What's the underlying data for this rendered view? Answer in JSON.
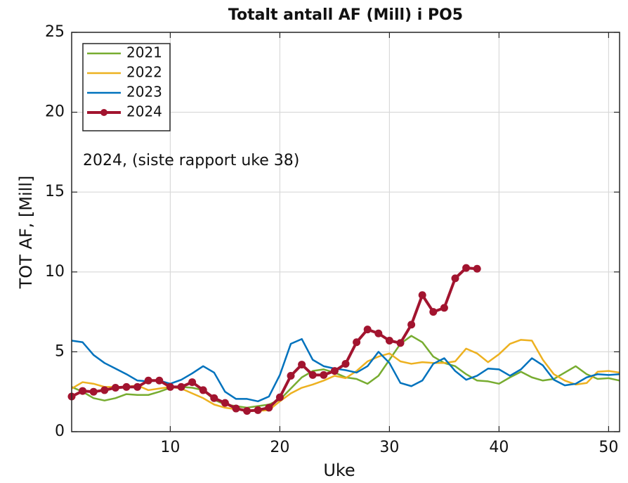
{
  "chart_data": {
    "type": "line",
    "title": "Totalt antall AF (Mill) i PO5",
    "xlabel": "Uke",
    "ylabel": "TOT AF, [Mill]",
    "annotation": "2024, (siste rapport uke 38)",
    "x": [
      1,
      2,
      3,
      4,
      5,
      6,
      7,
      8,
      9,
      10,
      11,
      12,
      13,
      14,
      15,
      16,
      17,
      18,
      19,
      20,
      21,
      22,
      23,
      24,
      25,
      26,
      27,
      28,
      29,
      30,
      31,
      32,
      33,
      34,
      35,
      36,
      37,
      38,
      39,
      40,
      41,
      42,
      43,
      44,
      45,
      46,
      47,
      48,
      49,
      50,
      51
    ],
    "series": [
      {
        "name": "2021",
        "color": "#77ac30",
        "marker": false,
        "values": [
          2.8,
          2.5,
          2.1,
          1.95,
          2.1,
          2.35,
          2.3,
          2.3,
          2.5,
          2.75,
          2.8,
          2.75,
          2.6,
          2.0,
          1.7,
          1.6,
          1.5,
          1.6,
          1.7,
          2.0,
          2.7,
          3.4,
          3.8,
          3.9,
          3.7,
          3.4,
          3.3,
          3.0,
          3.5,
          4.5,
          5.5,
          6.0,
          5.6,
          4.7,
          4.3,
          4.1,
          3.6,
          3.2,
          3.15,
          3.0,
          3.4,
          3.75,
          3.4,
          3.2,
          3.3,
          3.7,
          4.1,
          3.6,
          3.3,
          3.35,
          3.2
        ]
      },
      {
        "name": "2022",
        "color": "#edb120",
        "marker": false,
        "values": [
          2.7,
          3.1,
          3.0,
          2.8,
          2.8,
          2.8,
          2.9,
          2.6,
          2.7,
          2.8,
          2.7,
          2.4,
          2.1,
          1.7,
          1.5,
          1.4,
          1.3,
          1.3,
          1.35,
          1.9,
          2.4,
          2.75,
          2.95,
          3.2,
          3.5,
          3.35,
          3.8,
          4.4,
          4.7,
          4.9,
          4.4,
          4.25,
          4.35,
          4.3,
          4.3,
          4.4,
          5.2,
          4.9,
          4.35,
          4.85,
          5.5,
          5.75,
          5.7,
          4.5,
          3.6,
          3.2,
          2.95,
          3.05,
          3.75,
          3.8,
          3.7
        ]
      },
      {
        "name": "2023",
        "color": "#0072bd",
        "marker": false,
        "values": [
          5.7,
          5.6,
          4.8,
          4.3,
          3.95,
          3.6,
          3.2,
          3.15,
          3.2,
          3.0,
          3.25,
          3.65,
          4.1,
          3.7,
          2.5,
          2.05,
          2.05,
          1.9,
          2.2,
          3.55,
          5.5,
          5.8,
          4.5,
          4.1,
          3.95,
          3.85,
          3.7,
          4.1,
          5.0,
          4.3,
          3.05,
          2.85,
          3.2,
          4.25,
          4.6,
          3.8,
          3.25,
          3.5,
          3.95,
          3.9,
          3.5,
          3.9,
          4.6,
          4.15,
          3.25,
          2.9,
          3.0,
          3.4,
          3.6,
          3.55,
          3.6
        ]
      },
      {
        "name": "2024",
        "color": "#a2142f",
        "marker": true,
        "values": [
          2.2,
          2.55,
          2.5,
          2.6,
          2.75,
          2.8,
          2.8,
          3.2,
          3.2,
          2.8,
          2.8,
          3.1,
          2.6,
          2.1,
          1.8,
          1.45,
          1.3,
          1.35,
          1.5,
          2.15,
          3.5,
          4.2,
          3.55,
          3.55,
          3.8,
          4.25,
          5.6,
          6.4,
          6.15,
          5.7,
          5.55,
          6.7,
          8.55,
          7.5,
          7.75,
          9.6,
          10.25,
          10.2,
          null,
          null,
          null,
          null,
          null,
          null,
          null,
          null,
          null,
          null,
          null,
          null,
          null
        ]
      }
    ],
    "xlim": [
      1,
      51
    ],
    "ylim": [
      0,
      25
    ],
    "xticks": [
      10,
      20,
      30,
      40,
      50
    ],
    "yticks": [
      0,
      5,
      10,
      15,
      20,
      25
    ],
    "grid": true,
    "legend": "upper left"
  }
}
